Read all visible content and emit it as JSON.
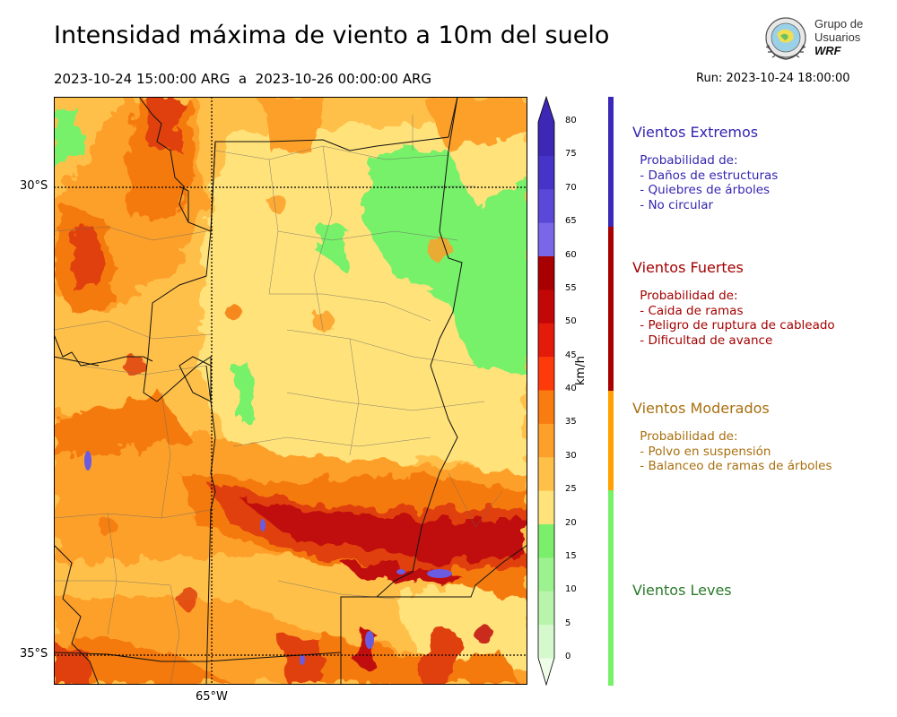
{
  "header": {
    "title": "Intensidad máxima de viento a 10m del suelo",
    "period": "2023-10-24 15:00:00 ARG  a  2023-10-26 00:00:00 ARG",
    "run": "Run: 2023-10-24 18:00:00"
  },
  "logo": {
    "line1": "Grupo de",
    "line2": "Usuarios",
    "line3": "WRF"
  },
  "map": {
    "lat_labels": [
      "30°S",
      "35°S"
    ],
    "lon_labels": [
      "65°W"
    ],
    "field_palette": {
      "light_green": "#a8f5a0",
      "green": "#77f06a",
      "yellow": "#ffe27a",
      "light_orange": "#ffc04a",
      "orange": "#fda02a",
      "dark_orange": "#f57a10",
      "red": "#e04010",
      "dark_red": "#c01010",
      "purple": "#6a5be0"
    }
  },
  "colorbar": {
    "unit": "km/h",
    "ticks": [
      "0",
      "5",
      "10",
      "15",
      "20",
      "25",
      "30",
      "35",
      "40",
      "45",
      "50",
      "55",
      "60",
      "65",
      "70",
      "75",
      "80"
    ],
    "colors": [
      "#eefde8",
      "#d5f8cc",
      "#b9f4ad",
      "#9cf28e",
      "#7bee6b",
      "#ffe27a",
      "#ffc04a",
      "#fda02a",
      "#f87c10",
      "#ff3a0a",
      "#e41a0a",
      "#c30606",
      "#a80000",
      "#7a67e8",
      "#5a48d8",
      "#4634c8",
      "#3d27b5"
    ]
  },
  "categories": [
    {
      "title": "Vientos Extremos",
      "body": " Probabilidad de:\n - Daños de estructuras\n - Quiebres de árboles\n - No circular",
      "color": "#3525b0",
      "band_color": "#3a28b8"
    },
    {
      "title": "Vientos Fuertes",
      "body": " Probabilidad de:\n - Caida de ramas\n - Peligro de ruptura de cableado\n - Dificultad de avance",
      "color": "#a40000",
      "band_color": "#a80000"
    },
    {
      "title": "Vientos Moderados",
      "body": " Probabilidad de:\n - Polvo en suspensión\n - Balanceo de ramas de árboles",
      "color": "#a86f0e",
      "band_color": "#ffa000"
    },
    {
      "title": "Vientos Leves",
      "body": "",
      "color": "#2a7a2a",
      "band_color": "#77f06a"
    }
  ]
}
